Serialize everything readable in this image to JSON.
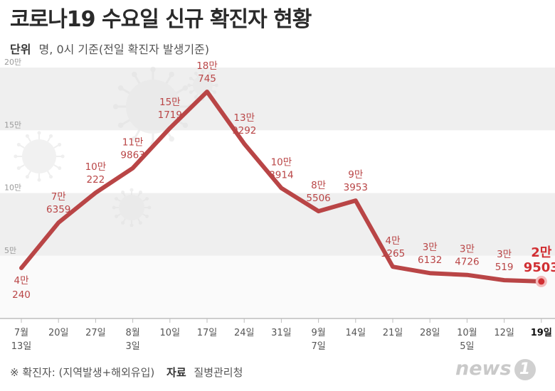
{
  "title": "코로나19 수요일 신규 확진자 현황",
  "unit": {
    "label": "단위",
    "text": "명, 0시 기준(전일 확진자 발생기준)"
  },
  "footer": {
    "note": "※ 확진자: (지역발생+해외유입)",
    "source_label": "자료",
    "source": "질병관리청"
  },
  "logo": {
    "word": "news",
    "mark": "1"
  },
  "colors": {
    "line": "#b94546",
    "highlight": "#d12f33",
    "band": "#efefef",
    "axis_text": "#555555"
  },
  "chart_data": {
    "type": "line",
    "title": "코로나19 수요일 신규 확진자 현황",
    "ylim": [
      0,
      200000
    ],
    "y_ticks": [
      {
        "value": 50000,
        "label": "5만"
      },
      {
        "value": 100000,
        "label": "10만"
      },
      {
        "value": 150000,
        "label": "15만"
      },
      {
        "value": 200000,
        "label": "20만"
      }
    ],
    "grid": "alternating horizontal bands",
    "points": [
      {
        "x_line1": "7월",
        "x_line2": "13일",
        "value": 40240,
        "label_top": "4만",
        "label_bottom": "240",
        "label_pos": "below"
      },
      {
        "x_line1": "20일",
        "x_line2": "",
        "value": 76359,
        "label_top": "7만",
        "label_bottom": "6359",
        "label_pos": "above"
      },
      {
        "x_line1": "27일",
        "x_line2": "",
        "value": 100222,
        "label_top": "10만",
        "label_bottom": "222",
        "label_pos": "above"
      },
      {
        "x_line1": "8월",
        "x_line2": "3일",
        "value": 119863,
        "label_top": "11만",
        "label_bottom": "9863",
        "label_pos": "above"
      },
      {
        "x_line1": "10일",
        "x_line2": "",
        "value": 151719,
        "label_top": "15만",
        "label_bottom": "1719",
        "label_pos": "above"
      },
      {
        "x_line1": "17일",
        "x_line2": "",
        "value": 180745,
        "label_top": "18만",
        "label_bottom": "745",
        "label_pos": "above"
      },
      {
        "x_line1": "24일",
        "x_line2": "",
        "value": 139292,
        "label_top": "13만",
        "label_bottom": "9292",
        "label_pos": "above"
      },
      {
        "x_line1": "31일",
        "x_line2": "",
        "value": 103914,
        "label_top": "10만",
        "label_bottom": "3914",
        "label_pos": "above"
      },
      {
        "x_line1": "9월",
        "x_line2": "7일",
        "value": 85506,
        "label_top": "8만",
        "label_bottom": "5506",
        "label_pos": "above"
      },
      {
        "x_line1": "14일",
        "x_line2": "",
        "value": 93953,
        "label_top": "9만",
        "label_bottom": "3953",
        "label_pos": "above"
      },
      {
        "x_line1": "21일",
        "x_line2": "",
        "value": 41265,
        "label_top": "4만",
        "label_bottom": "1265",
        "label_pos": "above"
      },
      {
        "x_line1": "28일",
        "x_line2": "",
        "value": 36132,
        "label_top": "3만",
        "label_bottom": "6132",
        "label_pos": "above"
      },
      {
        "x_line1": "10월",
        "x_line2": "5일",
        "value": 34726,
        "label_top": "3만",
        "label_bottom": "4726",
        "label_pos": "above"
      },
      {
        "x_line1": "12일",
        "x_line2": "",
        "value": 30519,
        "label_top": "3만",
        "label_bottom": "519",
        "label_pos": "above"
      },
      {
        "x_line1": "19일",
        "x_line2": "",
        "value": 29503,
        "label_top": "2만",
        "label_bottom": "9503",
        "label_pos": "above",
        "highlight": true
      }
    ]
  }
}
